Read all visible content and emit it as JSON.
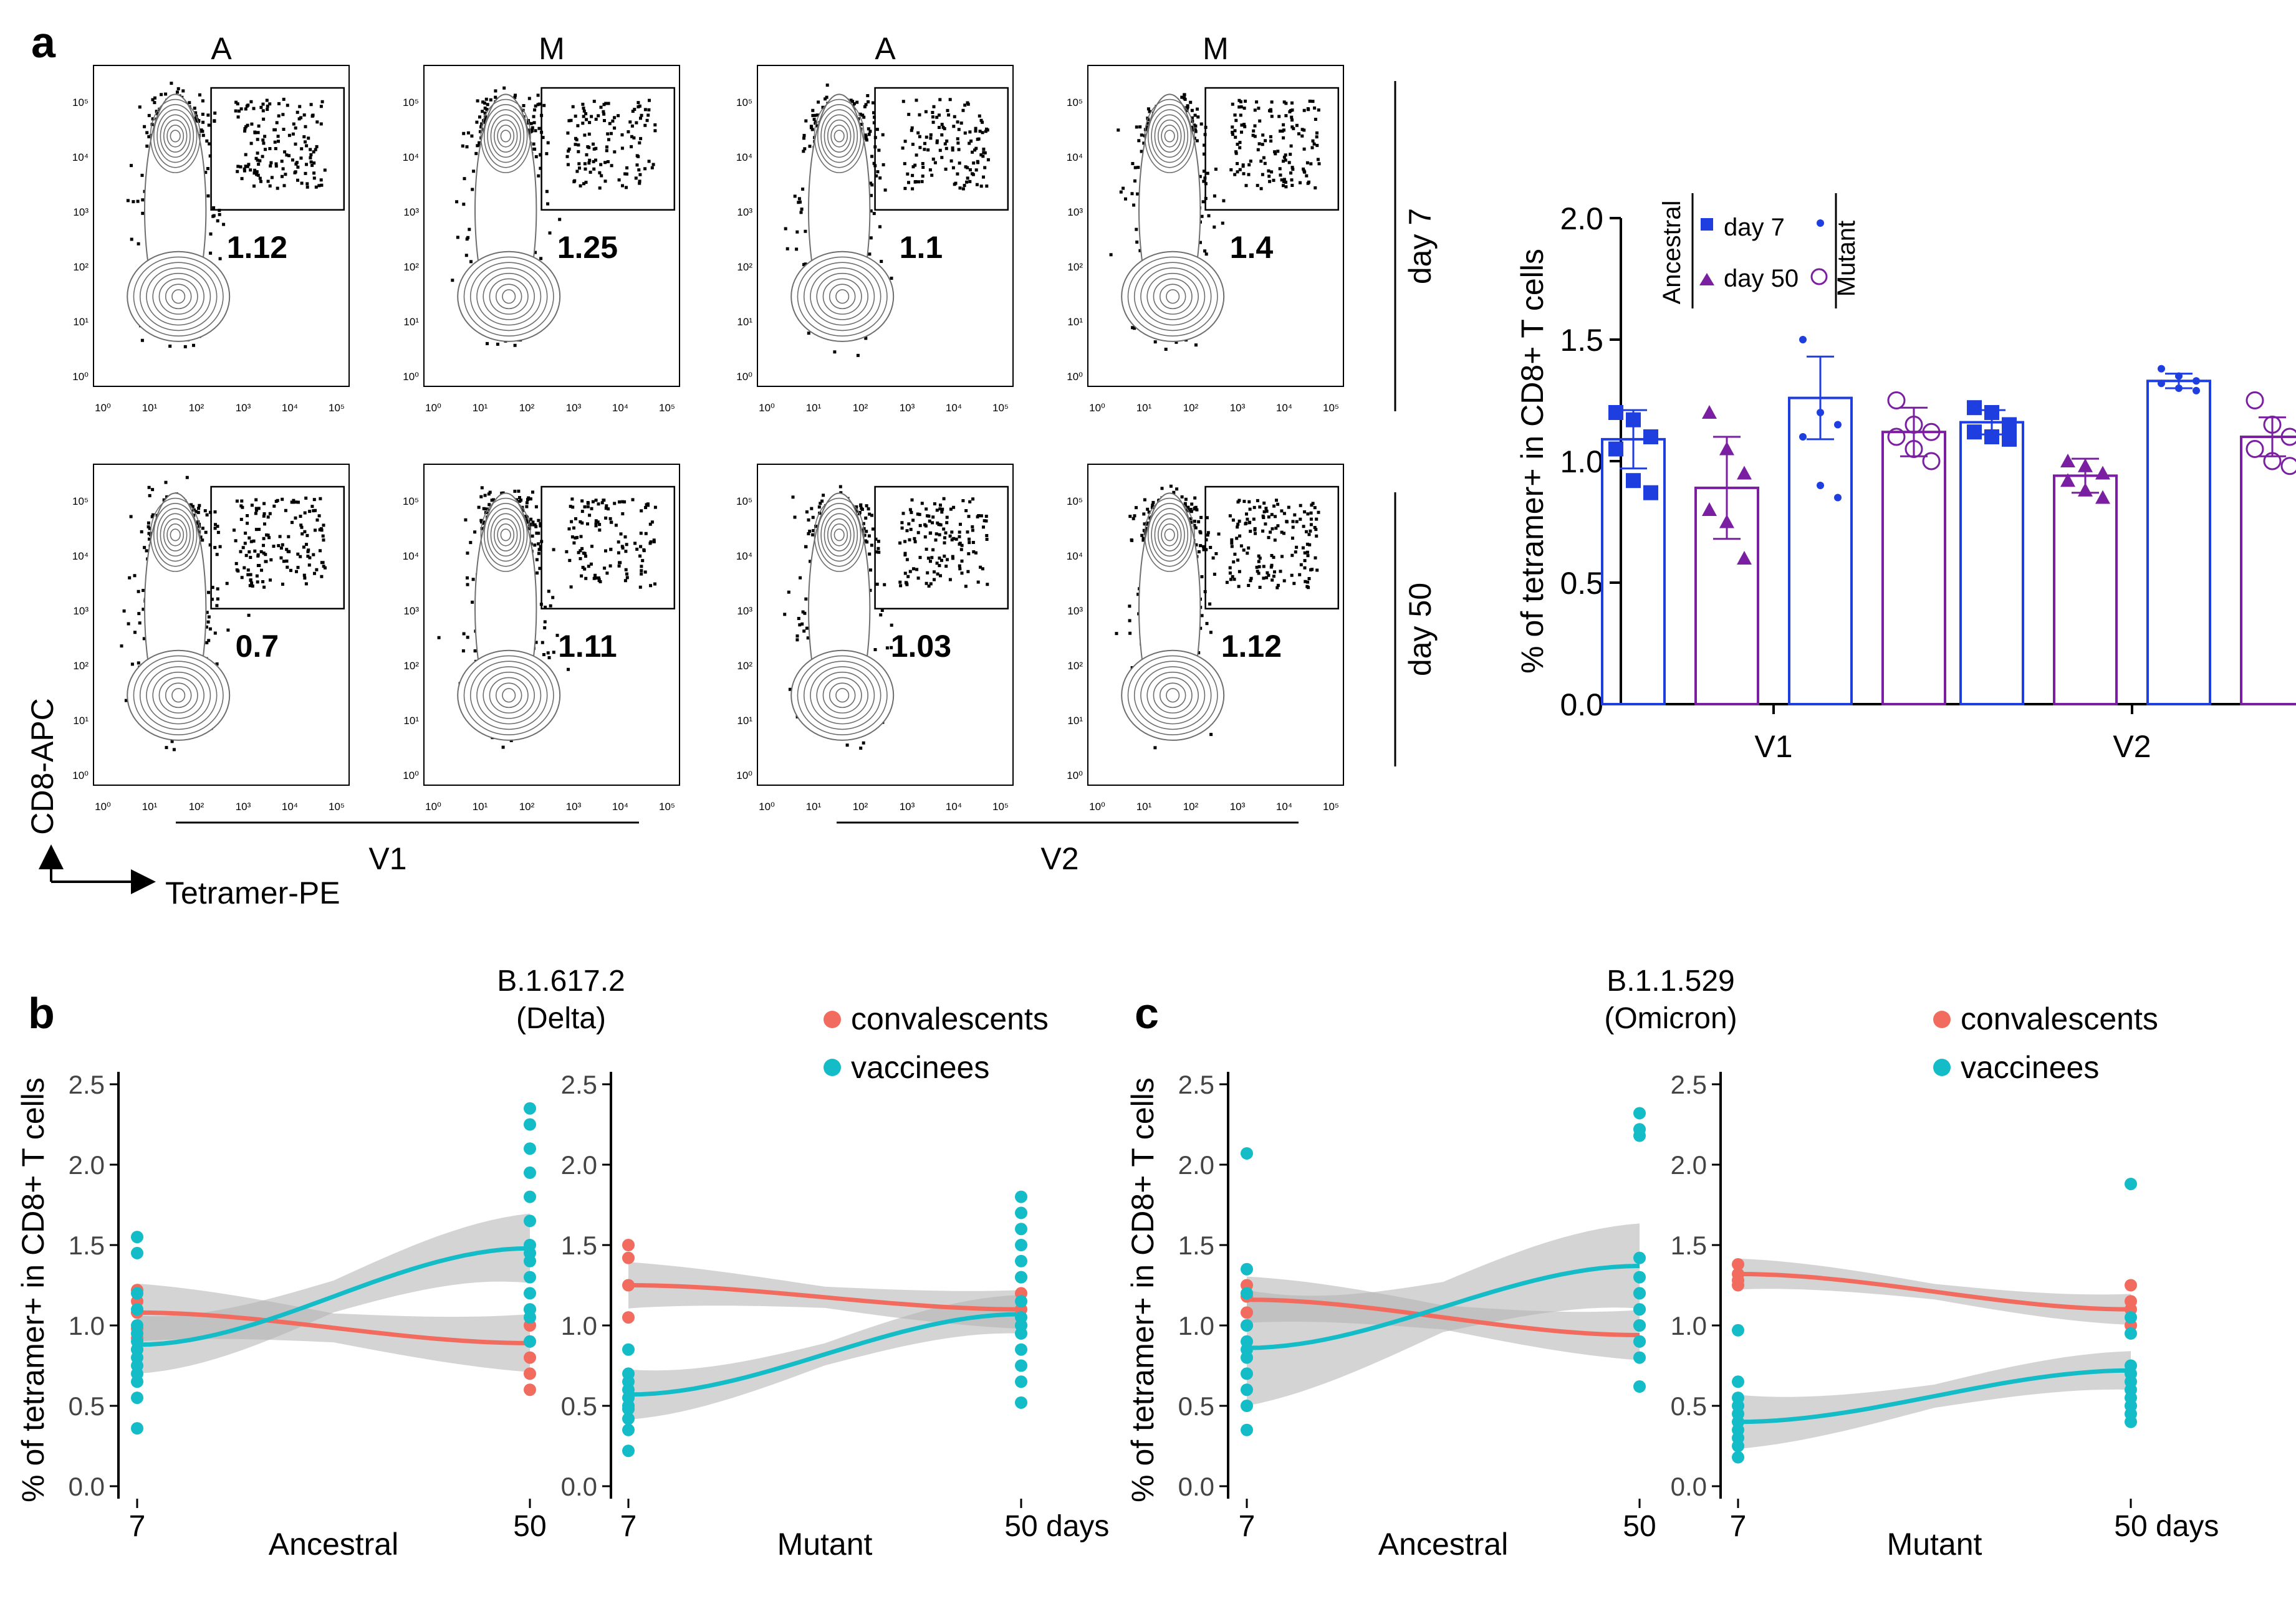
{
  "panel_labels": {
    "a": "a",
    "b": "b",
    "c": "c"
  },
  "colors": {
    "ancestral_blue": "#1f3ee0",
    "mutant_purple": "#7b1fa2",
    "convalescent": "#f26b5f",
    "vaccinee": "#14bcc8",
    "ribbon": "#b0b0b0",
    "contour": "#6e6e6e",
    "dot": "#000000"
  },
  "flow": {
    "col_headers": [
      "A",
      "M",
      "A",
      "M"
    ],
    "row_labels": [
      "day 7",
      "day 50"
    ],
    "group_labels": [
      "V1",
      "V2"
    ],
    "axis_y_label": "CD8-APC",
    "axis_x_label": "Tetramer-PE",
    "tick_labels": [
      "10⁰",
      "10¹",
      "10²",
      "10³",
      "10⁴",
      "10⁵"
    ],
    "percentages": [
      [
        "1.12",
        "1.25",
        "1.1",
        "1.4"
      ],
      [
        "0.7",
        "1.11",
        "1.03",
        "1.12"
      ]
    ]
  },
  "chart_data": [
    {
      "id": "a-bar",
      "type": "bar",
      "title": "",
      "ylabel": "% of tetramer+ in CD8+ T cells",
      "ylim": [
        0,
        2.0
      ],
      "yticks": [
        "0.0",
        "0.5",
        "1.0",
        "1.5",
        "2.0"
      ],
      "categories": [
        "V1",
        "V2"
      ],
      "legend": {
        "ancestral_label": "Ancestral",
        "mutant_label": "Mutant",
        "entries": [
          "day 7",
          "day 50"
        ]
      },
      "series": [
        {
          "name": "Ancestral day 7",
          "values": [
            1.09,
            1.16
          ],
          "errors": [
            0.12,
            0.05
          ],
          "points": [
            [
              1.2,
              1.17,
              1.1,
              1.05,
              0.92,
              0.87
            ],
            [
              1.22,
              1.2,
              1.15,
              1.12,
              1.1,
              1.09
            ]
          ]
        },
        {
          "name": "Ancestral day 50",
          "values": [
            0.89,
            0.94
          ],
          "errors": [
            0.21,
            0.07
          ],
          "points": [
            [
              1.2,
              1.05,
              0.95,
              0.8,
              0.75,
              0.6
            ],
            [
              1.0,
              0.98,
              0.95,
              0.92,
              0.88,
              0.85
            ]
          ]
        },
        {
          "name": "Mutant day 7",
          "values": [
            1.26,
            1.33
          ],
          "errors": [
            0.17,
            0.03
          ],
          "points": [
            [
              1.5,
              1.2,
              1.15,
              1.1,
              0.9,
              0.85
            ],
            [
              1.38,
              1.35,
              1.33,
              1.32,
              1.3,
              1.29
            ]
          ]
        },
        {
          "name": "Mutant day 50",
          "values": [
            1.12,
            1.1
          ],
          "errors": [
            0.1,
            0.08
          ],
          "points": [
            [
              1.25,
              1.15,
              1.12,
              1.1,
              1.05,
              1.0
            ],
            [
              1.25,
              1.15,
              1.1,
              1.05,
              1.0,
              0.98
            ]
          ]
        }
      ]
    },
    {
      "id": "b",
      "type": "scatter",
      "title": "B.1.617.2\n(Delta)",
      "ylabel": "% of tetramer+ in CD8+ T cells",
      "ylim": [
        0,
        2.5
      ],
      "yticks": [
        "0.0",
        "0.5",
        "1.0",
        "1.5",
        "2.0",
        "2.5"
      ],
      "x_ticks": [
        "7",
        "50"
      ],
      "x_unit": "days",
      "legend": [
        "convalescents",
        "vaccinees"
      ],
      "subpanels": [
        {
          "xlabel": "Ancestral",
          "fit": {
            "convalescents": [
              1.08,
              0.89
            ],
            "vaccinees": [
              0.88,
              1.48
            ]
          },
          "ribbon": {
            "convalescents": [
              0.15,
              0.15
            ],
            "vaccinees": [
              0.15,
              0.18
            ]
          },
          "points": {
            "convalescents": [
              [
                1.15,
                1.22,
                1.08,
                0.98,
                0.92,
                0.85
              ],
              [
                1.1,
                1.0,
                0.9,
                0.8,
                0.7,
                0.6
              ]
            ],
            "vaccinees": [
              [
                1.55,
                1.45,
                1.2,
                1.1,
                1.0,
                0.95,
                0.9,
                0.85,
                0.8,
                0.75,
                0.7,
                0.65,
                0.55,
                0.36
              ],
              [
                2.35,
                2.25,
                2.1,
                1.95,
                1.8,
                1.65,
                1.5,
                1.45,
                1.4,
                1.3,
                1.2,
                1.1,
                1.05,
                0.9
              ]
            ]
          }
        },
        {
          "xlabel": "Mutant",
          "fit": {
            "convalescents": [
              1.25,
              1.1
            ],
            "vaccinees": [
              0.57,
              1.07
            ]
          },
          "ribbon": {
            "convalescents": [
              0.12,
              0.1
            ],
            "vaccinees": [
              0.13,
              0.1
            ]
          },
          "points": {
            "convalescents": [
              [
                1.5,
                1.42,
                1.25,
                1.05
              ],
              [
                1.3,
                1.2,
                1.1,
                1.0
              ]
            ],
            "vaccinees": [
              [
                0.85,
                0.7,
                0.65,
                0.6,
                0.55,
                0.5,
                0.48,
                0.42,
                0.35,
                0.22
              ],
              [
                1.8,
                1.7,
                1.6,
                1.5,
                1.4,
                1.3,
                1.15,
                1.05,
                1.0,
                0.95,
                0.85,
                0.75,
                0.65,
                0.52
              ]
            ]
          }
        }
      ]
    },
    {
      "id": "c",
      "type": "scatter",
      "title": "B.1.1.529\n(Omicron)",
      "ylabel": "% of tetramer+ in CD8+ T cells",
      "ylim": [
        0,
        2.5
      ],
      "yticks": [
        "0.0",
        "0.5",
        "1.0",
        "1.5",
        "2.0",
        "2.5"
      ],
      "x_ticks": [
        "7",
        "50"
      ],
      "x_unit": "days",
      "legend": [
        "convalescents",
        "vaccinees"
      ],
      "subpanels": [
        {
          "xlabel": "Ancestral",
          "fit": {
            "convalescents": [
              1.16,
              0.94
            ],
            "vaccinees": [
              0.86,
              1.37
            ]
          },
          "ribbon": {
            "convalescents": [
              0.12,
              0.13
            ],
            "vaccinees": [
              0.3,
              0.22
            ]
          },
          "points": {
            "convalescents": [
              [
                1.25,
                1.18,
                1.08,
                1.0
              ],
              [
                1.2,
                1.1,
                1.0,
                0.9
              ]
            ],
            "vaccinees": [
              [
                2.07,
                1.35,
                1.2,
                1.0,
                0.9,
                0.85,
                0.8,
                0.7,
                0.6,
                0.5,
                0.35
              ],
              [
                2.32,
                2.22,
                2.18,
                1.42,
                1.3,
                1.2,
                1.1,
                1.0,
                0.9,
                0.8,
                0.62
              ]
            ]
          }
        },
        {
          "xlabel": "Mutant",
          "fit": {
            "convalescents": [
              1.32,
              1.1
            ],
            "vaccinees": [
              0.4,
              0.72
            ]
          },
          "ribbon": {
            "convalescents": [
              0.08,
              0.08
            ],
            "vaccinees": [
              0.14,
              0.1
            ]
          },
          "points": {
            "convalescents": [
              [
                1.38,
                1.32,
                1.28,
                1.25
              ],
              [
                1.25,
                1.15,
                1.1,
                1.0
              ]
            ],
            "vaccinees": [
              [
                0.97,
                0.65,
                0.55,
                0.5,
                0.45,
                0.4,
                0.35,
                0.3,
                0.25,
                0.18
              ],
              [
                1.88,
                1.05,
                0.95,
                0.75,
                0.7,
                0.65,
                0.6,
                0.55,
                0.5,
                0.45,
                0.4
              ]
            ]
          }
        }
      ]
    }
  ]
}
